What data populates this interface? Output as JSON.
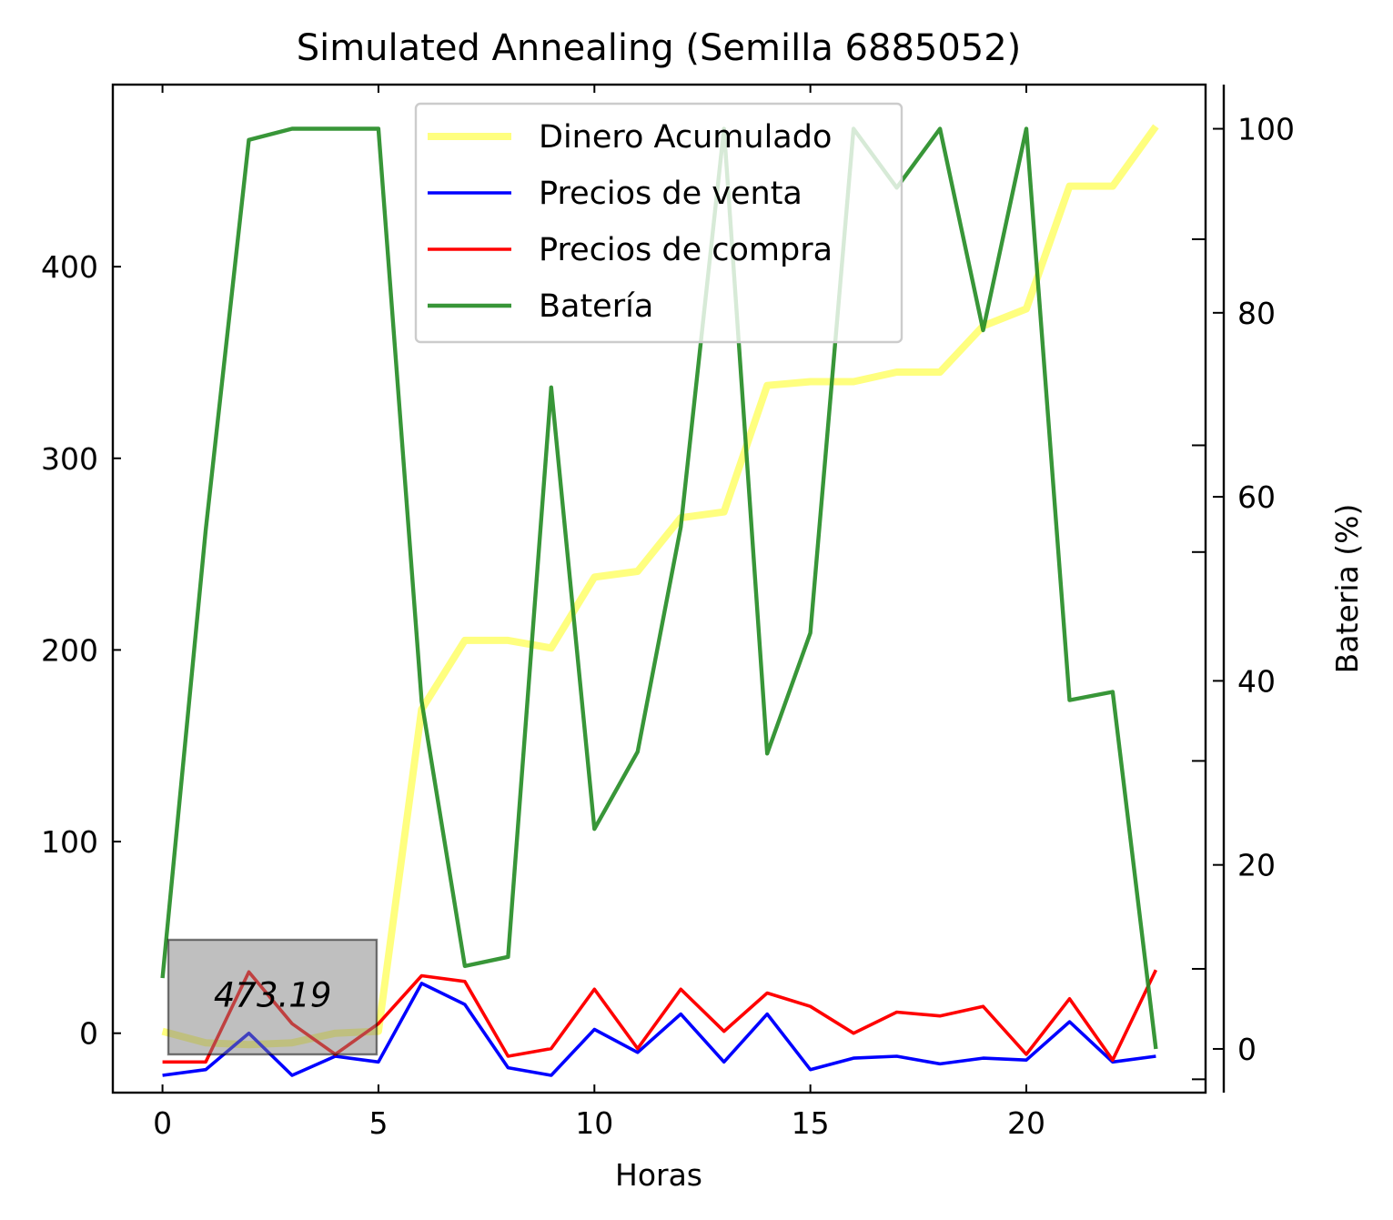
{
  "chart_data": {
    "type": "line",
    "title": "Simulated Annealing (Semilla 6885052)",
    "xlabel": "Horas",
    "ylabel": "",
    "y2label": "Bateria (%)",
    "y2label_color": "#008000",
    "xlim": [
      -1.15,
      24.15
    ],
    "ylim": [
      -31,
      495
    ],
    "y2lim": [
      -4.75,
      104.8
    ],
    "x_ticks": [
      0,
      5,
      10,
      15,
      20
    ],
    "y_ticks": [
      0,
      100,
      200,
      300,
      400
    ],
    "y2_ticks": [
      0,
      20,
      40,
      60,
      80,
      100
    ],
    "y2_minor_ticks": [
      -3.3,
      8.7,
      31.3,
      54,
      65.6,
      88
    ],
    "grid": false,
    "legend_position": "top-center",
    "x": [
      0,
      1,
      2,
      3,
      4,
      5,
      6,
      7,
      8,
      9,
      10,
      11,
      12,
      13,
      14,
      15,
      16,
      17,
      18,
      19,
      20,
      21,
      22,
      23
    ],
    "series": [
      {
        "name": "Dinero Acumulado",
        "axis": "left",
        "color": "#ffff00",
        "opacity": 0.5,
        "values": [
          1,
          -5,
          -6,
          -5,
          0,
          1,
          169,
          205,
          205,
          201,
          238,
          241,
          269,
          272,
          338,
          340,
          340,
          345,
          345,
          369,
          378,
          442,
          442,
          473.19
        ]
      },
      {
        "name": "Precios de venta",
        "axis": "left",
        "color": "#0000ff",
        "opacity": 1,
        "values": [
          -22,
          -19,
          0,
          -22,
          -12,
          -15,
          26,
          15,
          -18,
          -22,
          2,
          -10,
          10,
          -15,
          10,
          -19,
          -13,
          -12,
          -16,
          -13,
          -14,
          6,
          -15,
          -12
        ]
      },
      {
        "name": "Precios de compra",
        "axis": "left",
        "color": "#ff0000",
        "opacity": 1,
        "values": [
          -15,
          -15,
          32,
          5,
          -11,
          5,
          30,
          27,
          -12,
          -8,
          23,
          -8,
          23,
          1,
          21,
          14,
          0,
          11,
          9,
          14,
          -11,
          18,
          -14,
          33
        ]
      },
      {
        "name": "Batería",
        "axis": "right",
        "color": "#228b22",
        "opacity": 0.9,
        "values": [
          7.7,
          56.4,
          98.8,
          100,
          100,
          100,
          37.8,
          9,
          10,
          71.9,
          23.9,
          32.3,
          56.7,
          100,
          32.1,
          45.2,
          100,
          93.6,
          100,
          78.1,
          100,
          37.9,
          38.8,
          0
        ]
      }
    ],
    "annotation": {
      "text": "473.19",
      "x": 2.55,
      "y": 20
    }
  }
}
